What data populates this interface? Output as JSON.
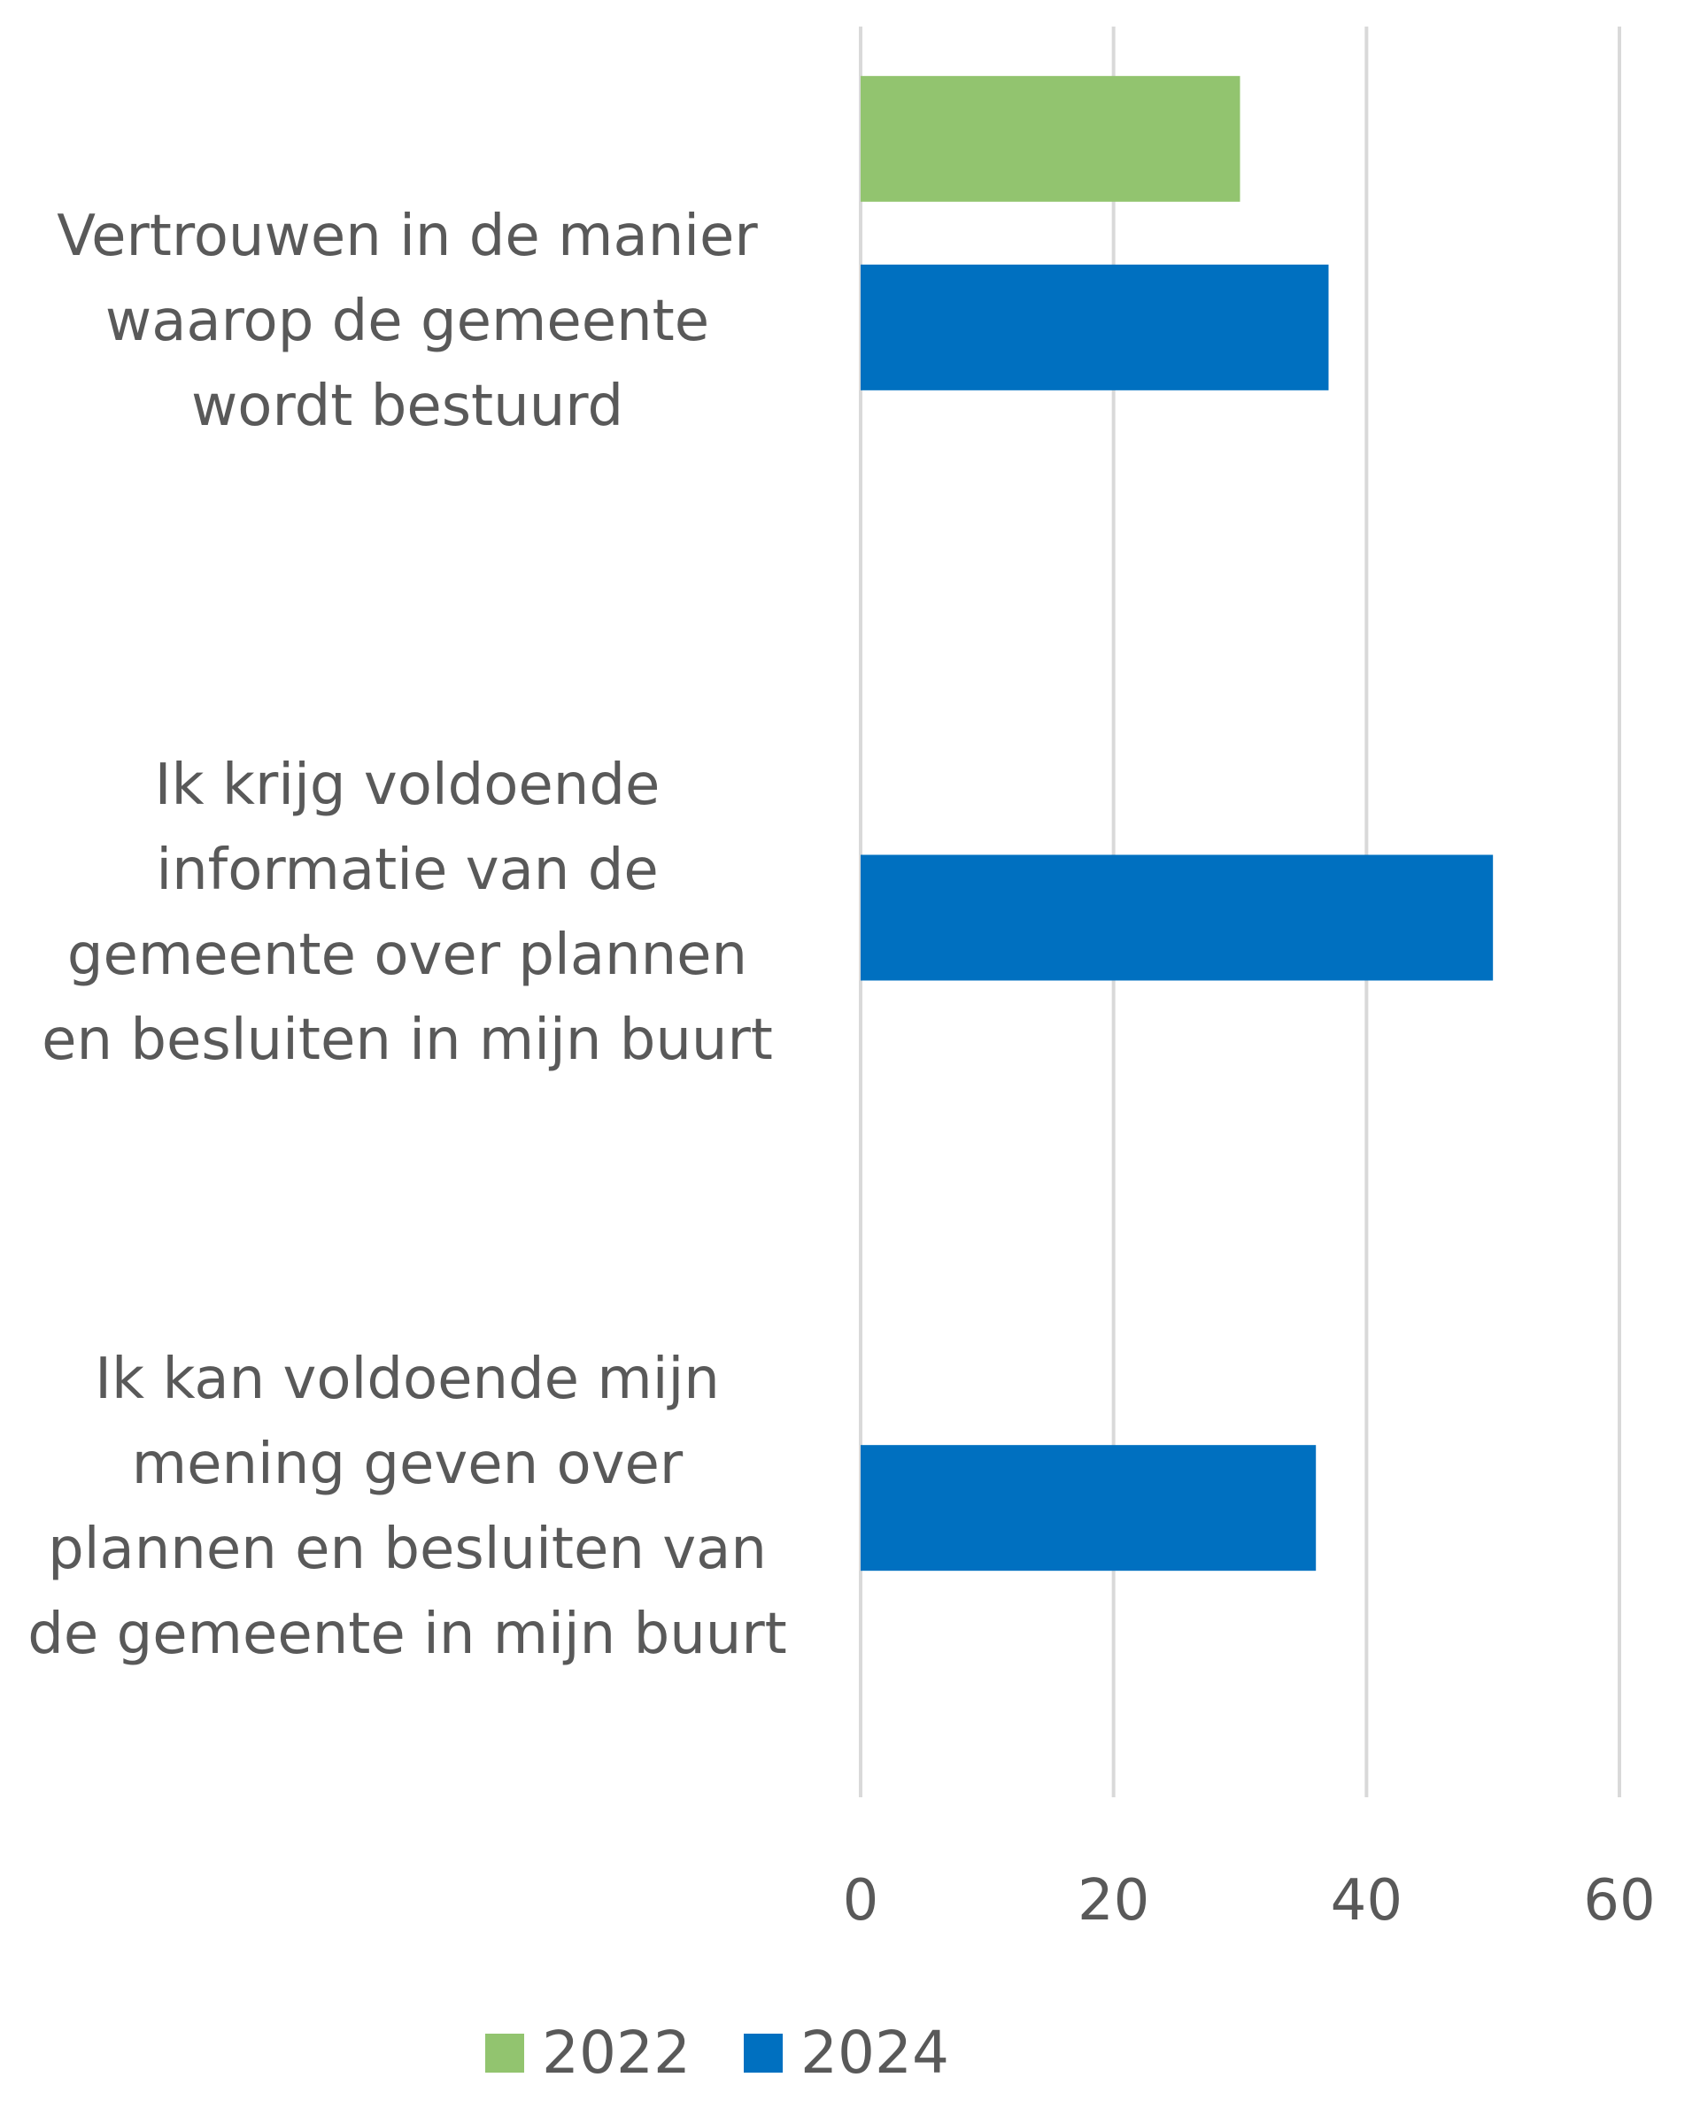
{
  "chart_data": {
    "type": "bar",
    "orientation": "horizontal",
    "title": "",
    "xlabel": "",
    "ylabel": "",
    "categories": [
      "Vertrouwen in de manier\nwaarop de gemeente\nwordt bestuurd",
      "Ik krijg voldoende\ninformatie van de\ngemeente over plannen\nen besluiten in mijn buurt",
      "Ik kan voldoende mijn\nmening geven over\nplannen en besluiten van\nde gemeente in mijn buurt"
    ],
    "series": [
      {
        "name": "2022",
        "color": "#92C46F",
        "values": [
          30,
          null,
          null
        ]
      },
      {
        "name": "2024",
        "color": "#0070C0",
        "values": [
          37,
          50,
          36
        ]
      }
    ],
    "xlim": [
      0,
      60
    ],
    "xticks": [
      "0",
      "20",
      "40",
      "60"
    ],
    "grid": true,
    "legend_position": "bottom"
  }
}
